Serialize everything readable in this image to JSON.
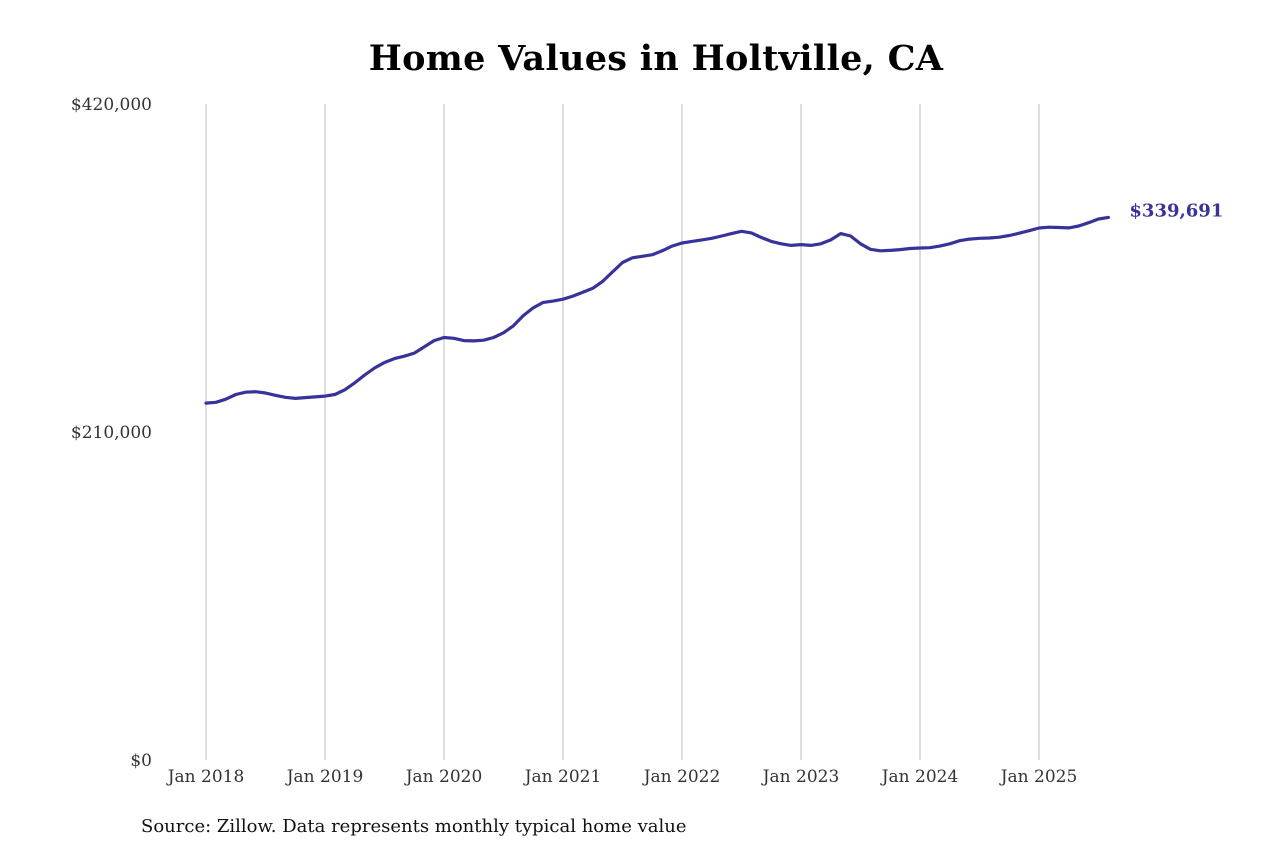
{
  "chart_data": {
    "type": "line",
    "title": "Home Values in Holtville, CA",
    "source": "Source: Zillow. Data represents monthly typical home value",
    "x_ticks": [
      "Jan 2018",
      "Jan 2019",
      "Jan 2020",
      "Jan 2021",
      "Jan 2022",
      "Jan 2023",
      "Jan 2024",
      "Jan 2025"
    ],
    "y_ticks": [
      "$0",
      "$210,000",
      "$420,000"
    ],
    "ylim": [
      0,
      420000
    ],
    "grid": "vertical",
    "line_color": "#37339a",
    "end_label": "$339,691",
    "series": [
      {
        "x": [
          "2018-01",
          "2018-02",
          "2018-03",
          "2018-04",
          "2018-05",
          "2018-06",
          "2018-07",
          "2018-08",
          "2018-09",
          "2018-10",
          "2018-11",
          "2018-12",
          "2019-01",
          "2019-02",
          "2019-03",
          "2019-04",
          "2019-05",
          "2019-06",
          "2019-07",
          "2019-08",
          "2019-09",
          "2019-10",
          "2019-11",
          "2019-12",
          "2020-01",
          "2020-02",
          "2020-03",
          "2020-04",
          "2020-05",
          "2020-06",
          "2020-07",
          "2020-08",
          "2020-09",
          "2020-10",
          "2020-11",
          "2020-12",
          "2021-01",
          "2021-02",
          "2021-03",
          "2021-04",
          "2021-05",
          "2021-06",
          "2021-07",
          "2021-08",
          "2021-09",
          "2021-10",
          "2021-11",
          "2021-12",
          "2022-01",
          "2022-02",
          "2022-03",
          "2022-04",
          "2022-05",
          "2022-06",
          "2022-07",
          "2022-08",
          "2022-09",
          "2022-10",
          "2022-11",
          "2022-12",
          "2023-01",
          "2023-02",
          "2023-03",
          "2023-04",
          "2023-05",
          "2023-06",
          "2023-07",
          "2023-08",
          "2023-09",
          "2023-10",
          "2023-11",
          "2023-12",
          "2024-01",
          "2024-02",
          "2024-03",
          "2024-04",
          "2024-05",
          "2024-06",
          "2024-07",
          "2024-08",
          "2024-09",
          "2024-10",
          "2024-11",
          "2024-12",
          "2025-01",
          "2025-02",
          "2025-03",
          "2025-04",
          "2025-05",
          "2025-06",
          "2025-07",
          "2025-08"
        ],
        "values": [
          228500,
          229000,
          231000,
          234000,
          235500,
          235800,
          235000,
          233500,
          232200,
          231500,
          232000,
          232500,
          233000,
          234000,
          237000,
          241500,
          246500,
          251000,
          254500,
          257000,
          258500,
          260500,
          264500,
          268500,
          270500,
          270000,
          268500,
          268300,
          268800,
          270500,
          273500,
          278000,
          284500,
          289500,
          293000,
          293800,
          295000,
          297000,
          299500,
          302000,
          306500,
          312500,
          318500,
          321500,
          322500,
          323500,
          326000,
          329000,
          331000,
          332000,
          333000,
          334000,
          335500,
          337000,
          338500,
          337500,
          334500,
          332000,
          330500,
          329500,
          330000,
          329500,
          330500,
          333000,
          337000,
          335500,
          330500,
          327000,
          326000,
          326300,
          326800,
          327500,
          327800,
          328000,
          329000,
          330500,
          332500,
          333500,
          334000,
          334200,
          334700,
          335800,
          337300,
          338900,
          340600,
          341100,
          340900,
          340700,
          341900,
          344000,
          346400,
          339691
        ]
      }
    ]
  }
}
